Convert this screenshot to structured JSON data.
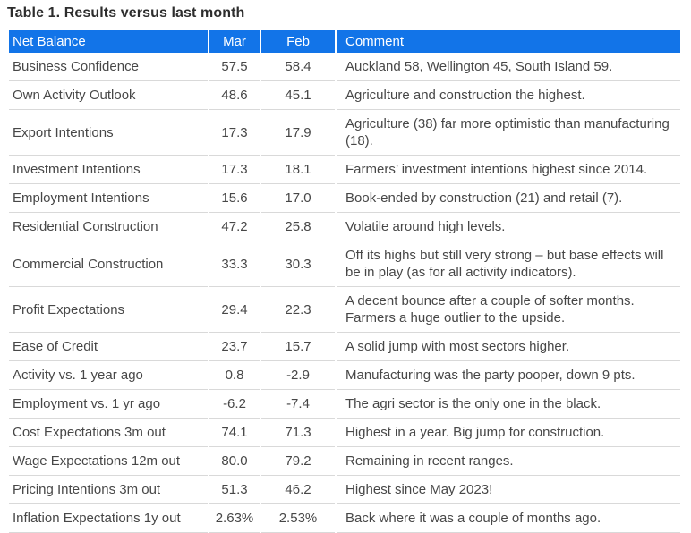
{
  "title": "Table 1. Results versus last month",
  "table": {
    "columns": [
      {
        "label": "Net Balance",
        "align": "left"
      },
      {
        "label": "Mar",
        "align": "center"
      },
      {
        "label": "Feb",
        "align": "center"
      },
      {
        "label": "Comment",
        "align": "left"
      }
    ],
    "rows": [
      {
        "net_balance": "Business Confidence",
        "mar": "57.5",
        "feb": "58.4",
        "comment": "Auckland 58, Wellington 45, South Island 59."
      },
      {
        "net_balance": "Own Activity Outlook",
        "mar": "48.6",
        "feb": "45.1",
        "comment": "Agriculture and construction the highest."
      },
      {
        "net_balance": "Export Intentions",
        "mar": "17.3",
        "feb": "17.9",
        "comment": "Agriculture (38) far more optimistic than manufacturing (18)."
      },
      {
        "net_balance": "Investment Intentions",
        "mar": "17.3",
        "feb": "18.1",
        "comment": "Farmers’ investment intentions highest since 2014."
      },
      {
        "net_balance": "Employment Intentions",
        "mar": "15.6",
        "feb": "17.0",
        "comment": "Book-ended by construction (21) and retail (7)."
      },
      {
        "net_balance": "Residential Construction",
        "mar": "47.2",
        "feb": "25.8",
        "comment": "Volatile around high levels."
      },
      {
        "net_balance": "Commercial Construction",
        "mar": "33.3",
        "feb": "30.3",
        "comment": "Off its highs but still very strong – but base effects will be in play (as for all activity indicators)."
      },
      {
        "net_balance": "Profit Expectations",
        "mar": "29.4",
        "feb": "22.3",
        "comment": "A decent bounce after a couple of softer months. Farmers a huge outlier to the upside."
      },
      {
        "net_balance": "Ease of Credit",
        "mar": "23.7",
        "feb": "15.7",
        "comment": "A solid jump with most sectors higher."
      },
      {
        "net_balance": "Activity vs. 1 year ago",
        "mar": "0.8",
        "feb": "-2.9",
        "comment": "Manufacturing was the party pooper, down 9 pts."
      },
      {
        "net_balance": "Employment vs. 1 yr ago",
        "mar": "-6.2",
        "feb": "-7.4",
        "comment": "The agri sector is the only one in the black."
      },
      {
        "net_balance": "Cost Expectations 3m out",
        "mar": "74.1",
        "feb": "71.3",
        "comment": "Highest in a year. Big jump for construction."
      },
      {
        "net_balance": "Wage Expectations 12m out",
        "mar": "80.0",
        "feb": "79.2",
        "comment": "Remaining in recent ranges."
      },
      {
        "net_balance": "Pricing Intentions 3m out",
        "mar": "51.3",
        "feb": "46.2",
        "comment": "Highest since May 2023!"
      },
      {
        "net_balance": "Inflation Expectations 1y out",
        "mar": "2.63%",
        "feb": "2.53%",
        "comment": "Back where it was a couple of months ago."
      }
    ]
  },
  "colors": {
    "header_bg": "#1274e8",
    "header_text": "#ffffff",
    "row_border": "#d9d9d9",
    "body_text": "#474747",
    "title_text": "#2d2d2d",
    "page_bg": "#ffffff"
  }
}
